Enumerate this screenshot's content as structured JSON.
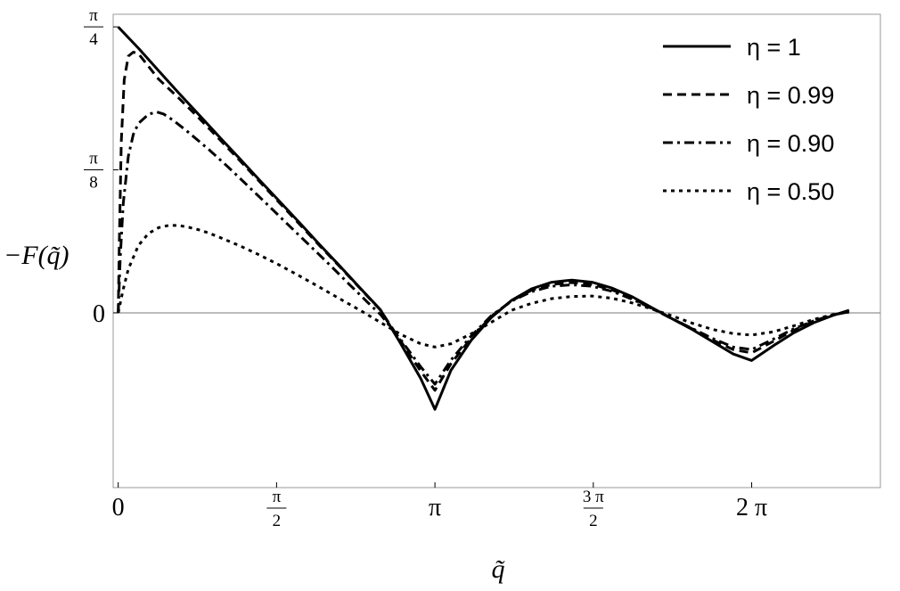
{
  "chart_data": {
    "type": "line",
    "xlabel": "q̃",
    "ylabel": "−F(q̃)",
    "xlim": [
      -0.05,
      7.56
    ],
    "ylim": [
      -0.48,
      0.82
    ],
    "grid": false,
    "legend_position": "top-right",
    "x_ticks": [
      {
        "value": 0,
        "num": "0",
        "den": ""
      },
      {
        "value": 1.5708,
        "num": "π",
        "den": "2"
      },
      {
        "value": 3.1416,
        "num": "π",
        "den": ""
      },
      {
        "value": 4.7124,
        "num": "3 π",
        "den": "2"
      },
      {
        "value": 6.2832,
        "num": "2 π",
        "den": ""
      }
    ],
    "y_ticks": [
      {
        "value": 0,
        "num": "0",
        "den": ""
      },
      {
        "value": 0.3927,
        "num": "π",
        "den": "8"
      },
      {
        "value": 0.7854,
        "num": "π",
        "den": "4"
      }
    ],
    "series": [
      {
        "name": "η = 1",
        "dash": "solid",
        "x": [
          0,
          0.2,
          0.4,
          0.6,
          0.8,
          1.0,
          1.2,
          1.4,
          1.6,
          1.8,
          2.0,
          2.2,
          2.4,
          2.6,
          2.8,
          3.0,
          3.1416,
          3.3,
          3.5,
          3.7,
          3.9,
          4.1,
          4.3,
          4.5,
          4.7,
          4.9,
          5.1,
          5.3,
          5.5,
          5.7,
          5.9,
          6.1,
          6.2832,
          6.5,
          6.7,
          6.9,
          7.1,
          7.25
        ],
        "y": [
          0.785,
          0.727,
          0.665,
          0.604,
          0.544,
          0.484,
          0.425,
          0.365,
          0.306,
          0.247,
          0.187,
          0.128,
          0.068,
          0.009,
          -0.084,
          -0.18,
          -0.265,
          -0.158,
          -0.076,
          -0.013,
          0.034,
          0.066,
          0.084,
          0.09,
          0.084,
          0.068,
          0.044,
          0.013,
          -0.017,
          -0.047,
          -0.08,
          -0.113,
          -0.131,
          -0.09,
          -0.055,
          -0.027,
          -0.006,
          0.007
        ]
      },
      {
        "name": "η = 0.99",
        "dash": "10,6",
        "x": [
          0,
          0.01,
          0.03,
          0.06,
          0.1,
          0.15,
          0.2,
          0.3,
          0.4,
          0.6,
          0.8,
          1.0,
          1.2,
          1.4,
          1.6,
          1.8,
          2.0,
          2.2,
          2.4,
          2.6,
          2.8,
          3.0,
          3.1416,
          3.3,
          3.5,
          3.7,
          3.9,
          4.1,
          4.3,
          4.5,
          4.7,
          4.9,
          5.1,
          5.3,
          5.5,
          5.7,
          5.9,
          6.1,
          6.2832,
          6.5,
          6.7,
          6.9,
          7.1,
          7.25
        ],
        "y": [
          0.0,
          0.18,
          0.47,
          0.64,
          0.705,
          0.716,
          0.712,
          0.677,
          0.642,
          0.59,
          0.535,
          0.478,
          0.42,
          0.361,
          0.302,
          0.243,
          0.184,
          0.126,
          0.067,
          0.008,
          -0.077,
          -0.16,
          -0.213,
          -0.14,
          -0.07,
          -0.01,
          0.033,
          0.062,
          0.078,
          0.083,
          0.078,
          0.063,
          0.04,
          0.012,
          -0.017,
          -0.045,
          -0.075,
          -0.101,
          -0.11,
          -0.078,
          -0.048,
          -0.024,
          -0.005,
          0.003
        ]
      },
      {
        "name": "η = 0.90",
        "dash": "11,5,3,5",
        "x": [
          0,
          0.02,
          0.05,
          0.1,
          0.15,
          0.2,
          0.3,
          0.38,
          0.45,
          0.55,
          0.7,
          0.9,
          1.1,
          1.3,
          1.5,
          1.7,
          1.9,
          2.1,
          2.3,
          2.5,
          2.6,
          2.8,
          3.0,
          3.1416,
          3.3,
          3.5,
          3.7,
          3.9,
          4.1,
          4.3,
          4.5,
          4.7,
          4.9,
          5.1,
          5.3,
          5.5,
          5.7,
          5.9,
          6.1,
          6.2832,
          6.5,
          6.7,
          6.9,
          7.1,
          7.25
        ],
        "y": [
          0.0,
          0.15,
          0.3,
          0.43,
          0.49,
          0.52,
          0.545,
          0.552,
          0.546,
          0.528,
          0.495,
          0.448,
          0.398,
          0.345,
          0.292,
          0.238,
          0.185,
          0.131,
          0.076,
          0.022,
          -0.004,
          -0.073,
          -0.148,
          -0.196,
          -0.13,
          -0.064,
          -0.008,
          0.032,
          0.058,
          0.073,
          0.077,
          0.073,
          0.059,
          0.037,
          0.011,
          -0.017,
          -0.044,
          -0.071,
          -0.094,
          -0.101,
          -0.072,
          -0.044,
          -0.022,
          -0.005,
          0.003
        ]
      },
      {
        "name": "η = 0.50",
        "dash": "4,5",
        "x": [
          0,
          0.05,
          0.1,
          0.2,
          0.3,
          0.4,
          0.5,
          0.6,
          0.7,
          0.8,
          0.9,
          1.0,
          1.2,
          1.4,
          1.6,
          1.8,
          2.0,
          2.2,
          2.4,
          2.6,
          2.8,
          3.0,
          3.1416,
          3.3,
          3.5,
          3.7,
          3.9,
          4.1,
          4.3,
          4.5,
          4.7,
          4.9,
          5.1,
          5.3,
          5.5,
          5.7,
          5.9,
          6.1,
          6.2832,
          6.5,
          6.7,
          6.9,
          7.1,
          7.25
        ],
        "y": [
          0.0,
          0.065,
          0.12,
          0.185,
          0.218,
          0.234,
          0.24,
          0.24,
          0.235,
          0.228,
          0.219,
          0.208,
          0.185,
          0.159,
          0.131,
          0.101,
          0.07,
          0.038,
          0.007,
          -0.026,
          -0.059,
          -0.085,
          -0.094,
          -0.085,
          -0.058,
          -0.026,
          0.007,
          0.026,
          0.039,
          0.045,
          0.046,
          0.04,
          0.027,
          0.01,
          -0.009,
          -0.029,
          -0.046,
          -0.057,
          -0.061,
          -0.052,
          -0.036,
          -0.018,
          -0.004,
          0.002
        ]
      }
    ]
  }
}
